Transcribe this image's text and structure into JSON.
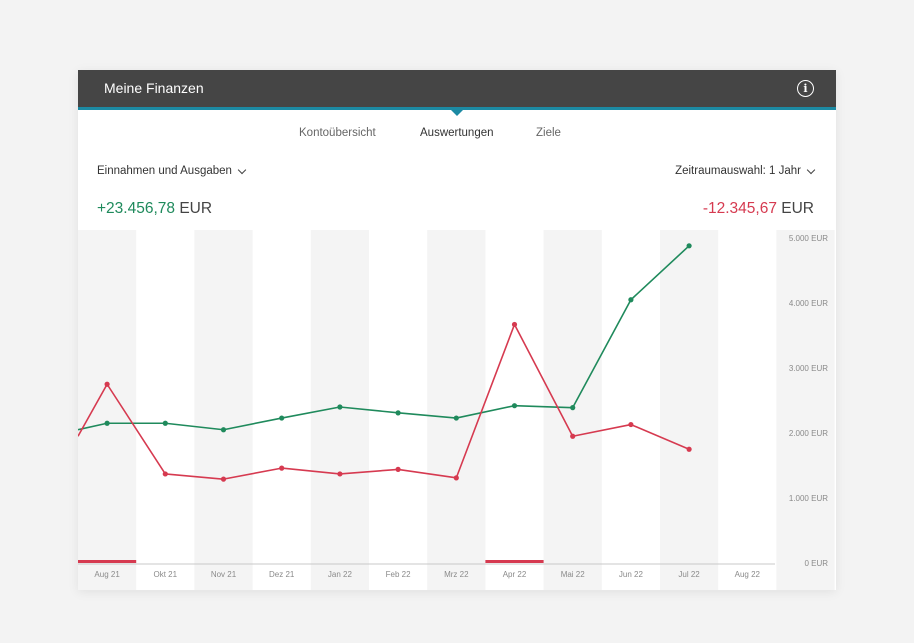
{
  "header": {
    "title": "Meine Finanzen",
    "info_icon": "info-icon"
  },
  "tabs": [
    {
      "label": "Kontoübersicht",
      "active": false
    },
    {
      "label": "Auswertungen",
      "active": true
    },
    {
      "label": "Ziele",
      "active": false
    }
  ],
  "controls": {
    "type_select": "Einnahmen und Ausgaben",
    "period_select": "Zeitraumauswahl: 1 Jahr"
  },
  "totals": {
    "income_value": "+23.456,78",
    "income_currency": "EUR",
    "expense_value": "-12.345,67",
    "expense_currency": "EUR"
  },
  "colors": {
    "income": "#1f8a5c",
    "expense": "#d63a50",
    "accent": "#1c8aa3",
    "header": "#454545"
  },
  "chart_data": {
    "type": "line",
    "categories": [
      "Aug 21",
      "Okt 21",
      "Nov 21",
      "Dez 21",
      "Jan 22",
      "Feb 22",
      "Mrz 22",
      "Apr 22",
      "Mai 22",
      "Jun 22",
      "Jul 22",
      "Aug 22"
    ],
    "y_tick_labels": [
      "0 EUR",
      "1.000 EUR",
      "2.000 EUR",
      "3.000 EUR",
      "4.000 EUR",
      "5.000 EUR"
    ],
    "ylim": [
      0,
      5000
    ],
    "series": [
      {
        "key": "income",
        "values": [
          2150,
          2150,
          2050,
          2230,
          2400,
          2310,
          2230,
          2420,
          2390,
          4050,
          4880,
          null
        ],
        "start_value": 2050
      },
      {
        "key": "expense",
        "values": [
          2750,
          1370,
          1290,
          1460,
          1370,
          1440,
          1310,
          3670,
          1950,
          2130,
          1750,
          null
        ],
        "start_value": 1950
      }
    ],
    "highlighted_months": [
      "Aug 21",
      "Apr 22"
    ],
    "grid": "alternating-column-bands"
  }
}
